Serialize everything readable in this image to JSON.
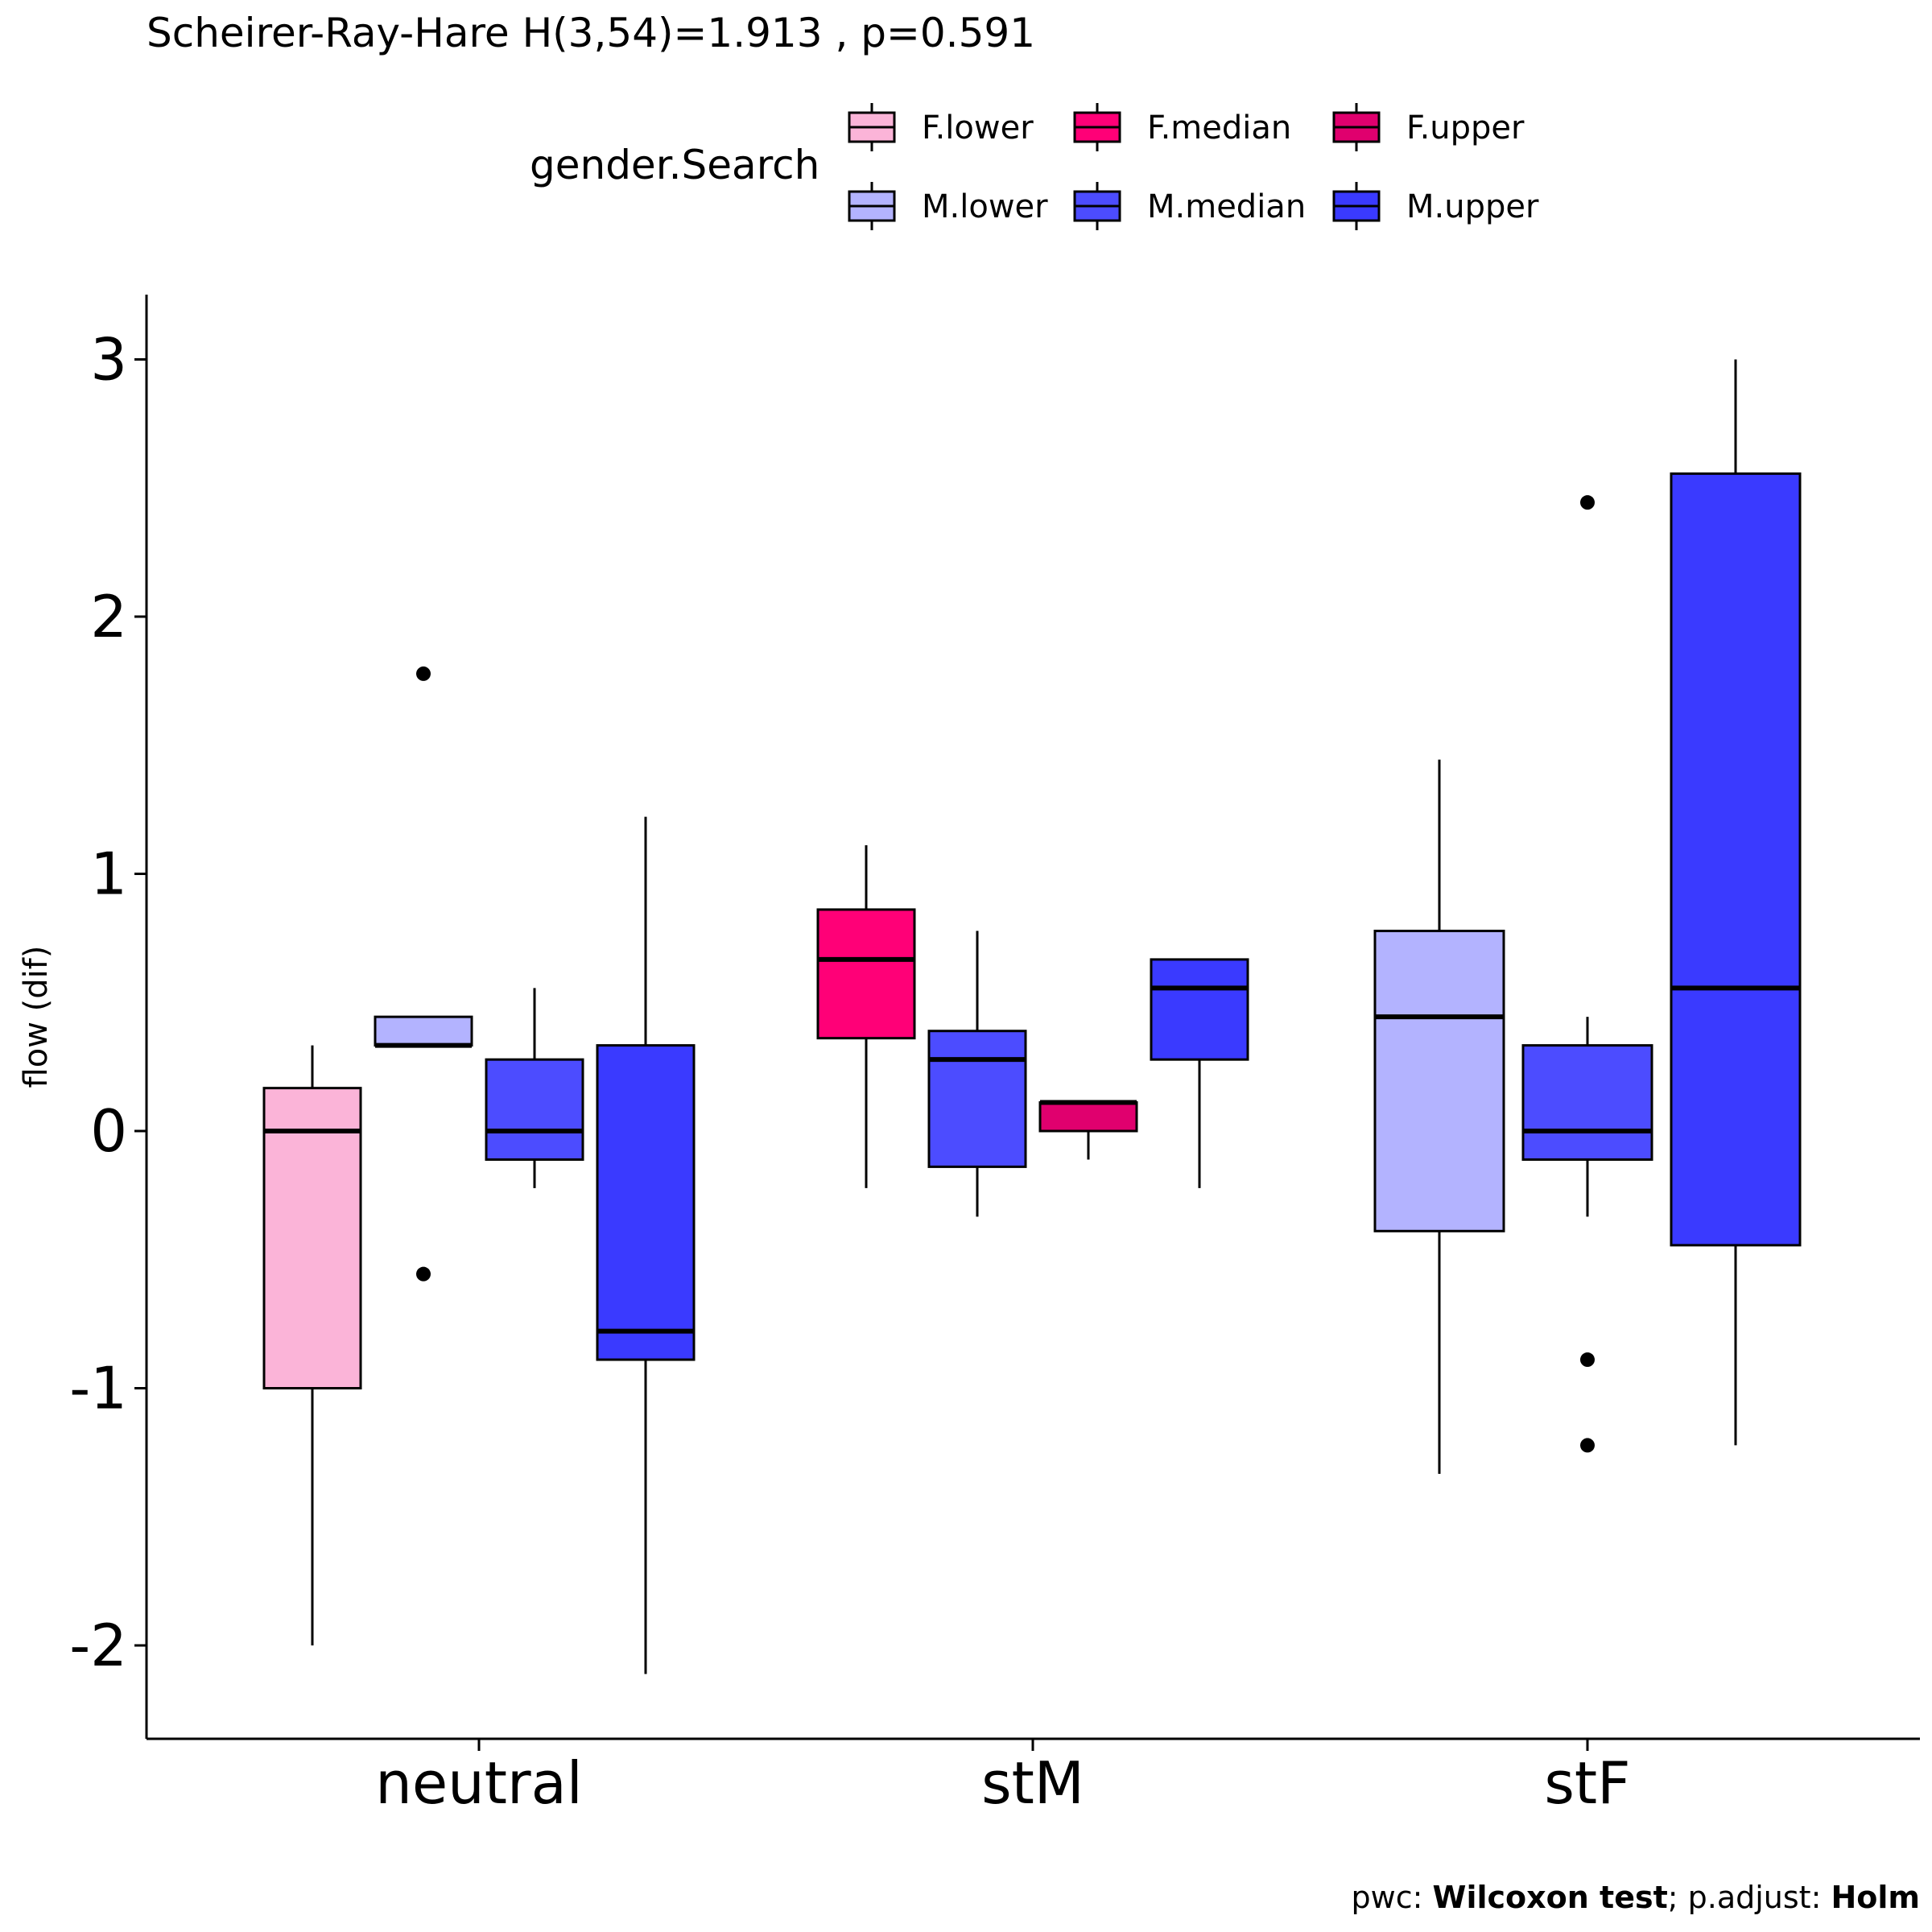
{
  "chart_data": {
    "type": "boxplot",
    "subtitle": "Scheirer-Ray-Hare H(3,54)=1.913 , p=0.591",
    "ylabel": "flow (dif)",
    "xlabel": "",
    "ylim": [
      -2.35,
      3.25
    ],
    "y_ticks": [
      3,
      2,
      1,
      0,
      -1,
      -2
    ],
    "y_tick_labels": [
      "3",
      "2",
      "1",
      "0",
      "-1",
      "-2"
    ],
    "categories": [
      "neutral",
      "stM",
      "stF"
    ],
    "legend": {
      "title": "gender.Search",
      "position": "top",
      "items": [
        {
          "label": "F.lower",
          "color": "#fbb4d8"
        },
        {
          "label": "F.median",
          "color": "#ff0077"
        },
        {
          "label": "F.upper",
          "color": "#e0006e"
        },
        {
          "label": "M.lower",
          "color": "#b3b3ff"
        },
        {
          "label": "M.median",
          "color": "#4c4cff"
        },
        {
          "label": "M.upper",
          "color": "#3a3aff"
        }
      ]
    },
    "boxes": [
      {
        "category": "neutral",
        "group": "F.lower",
        "color": "#fbb4d8",
        "whisker_low": -2.0,
        "q1": -1.0,
        "median": 0.0,
        "q3": 0.167,
        "whisker_high": 0.333,
        "outliers": []
      },
      {
        "category": "neutral",
        "group": "M.lower",
        "color": "#b3b3ff",
        "whisker_low": 0.333,
        "q1": 0.333,
        "median": 0.333,
        "q3": 0.444,
        "whisker_high": 0.444,
        "outliers": [
          1.778,
          -0.556
        ]
      },
      {
        "category": "neutral",
        "group": "M.median",
        "color": "#4c4cff",
        "whisker_low": -0.222,
        "q1": -0.111,
        "median": 0.0,
        "q3": 0.278,
        "whisker_high": 0.556,
        "outliers": []
      },
      {
        "category": "neutral",
        "group": "M.upper",
        "color": "#3a3aff",
        "whisker_low": -2.111,
        "q1": -0.889,
        "median": -0.778,
        "q3": 0.333,
        "whisker_high": 1.222,
        "outliers": []
      },
      {
        "category": "stM",
        "group": "F.median",
        "color": "#ff0077",
        "whisker_low": -0.222,
        "q1": 0.361,
        "median": 0.667,
        "q3": 0.861,
        "whisker_high": 1.111,
        "outliers": []
      },
      {
        "category": "stM",
        "group": "M.median",
        "color": "#4c4cff",
        "whisker_low": -0.333,
        "q1": -0.139,
        "median": 0.278,
        "q3": 0.389,
        "whisker_high": 0.778,
        "outliers": []
      },
      {
        "category": "stM",
        "group": "F.upper",
        "color": "#e0006e",
        "whisker_low": -0.111,
        "q1": 0.0,
        "median": 0.111,
        "q3": 0.111,
        "whisker_high": 0.111,
        "outliers": []
      },
      {
        "category": "stM",
        "group": "M.upper",
        "color": "#3a3aff",
        "whisker_low": -0.222,
        "q1": 0.278,
        "median": 0.556,
        "q3": 0.667,
        "whisker_high": 0.667,
        "outliers": []
      },
      {
        "category": "stF",
        "group": "M.lower",
        "color": "#b3b3ff",
        "whisker_low": -1.333,
        "q1": -0.389,
        "median": 0.444,
        "q3": 0.778,
        "whisker_high": 1.444,
        "outliers": []
      },
      {
        "category": "stF",
        "group": "M.median",
        "color": "#4c4cff",
        "whisker_low": -0.333,
        "q1": -0.111,
        "median": 0.0,
        "q3": 0.333,
        "whisker_high": 0.444,
        "outliers": [
          2.444,
          -0.889,
          -1.222
        ]
      },
      {
        "category": "stF",
        "group": "M.upper",
        "color": "#3a3aff",
        "whisker_low": -1.222,
        "q1": -0.444,
        "median": 0.556,
        "q3": 2.556,
        "whisker_high": 3.0,
        "outliers": []
      }
    ],
    "caption": {
      "prefix1": "pwc: ",
      "bold1": "Wilcoxon test",
      "prefix2": "; p.adjust: ",
      "bold2": "Holm"
    }
  }
}
